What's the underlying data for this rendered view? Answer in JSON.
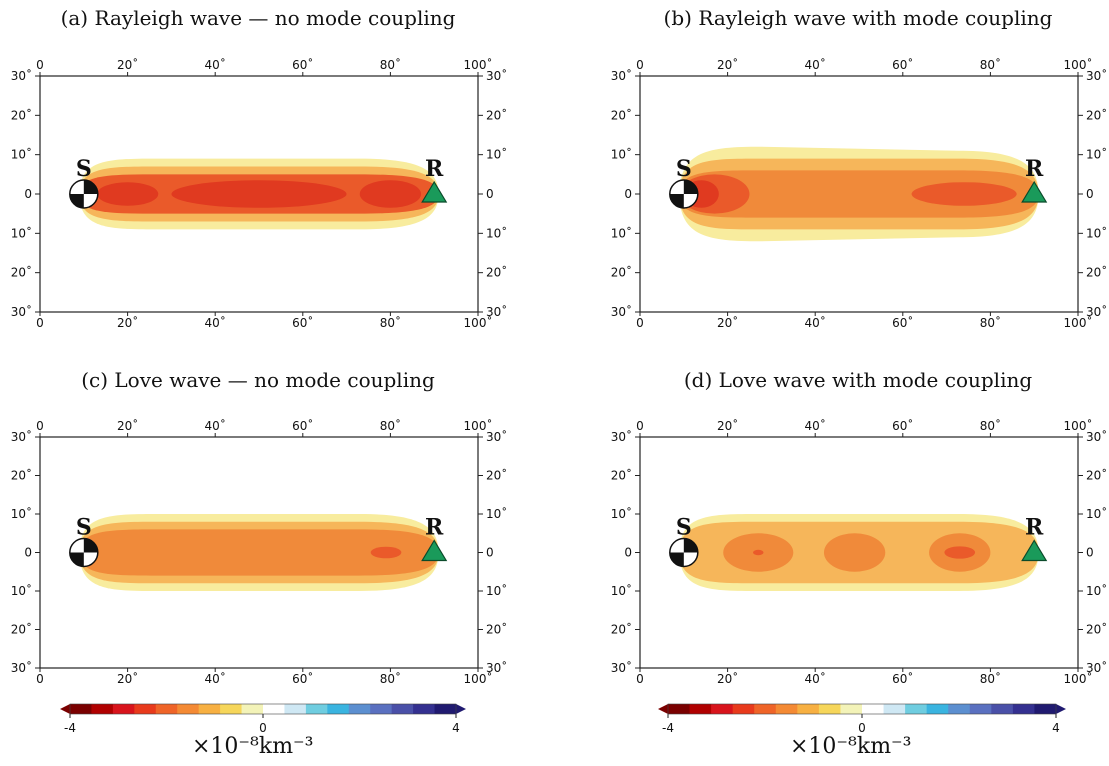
{
  "panels": [
    {
      "title": "(a) Rayleigh wave — no mode coupling"
    },
    {
      "title": "(b) Rayleigh wave with mode coupling"
    },
    {
      "title": "(c) Love wave — no mode coupling"
    },
    {
      "title": "(d) Love wave with mode coupling"
    }
  ],
  "axes": {
    "x_ticks": [
      "0",
      "20˚",
      "40˚",
      "60˚",
      "80˚",
      "100˚"
    ],
    "y_ticks": [
      "30˚",
      "20˚",
      "10˚",
      "0",
      "10˚",
      "20˚",
      "30˚"
    ]
  },
  "markers": {
    "source": "S",
    "receiver": "R"
  },
  "colorbar": {
    "tick_labels": [
      "-4",
      "0",
      "4"
    ],
    "unit": "×10⁻⁸km⁻³",
    "colors": [
      "#7a0000",
      "#b00000",
      "#d8141c",
      "#e83a1c",
      "#ef6428",
      "#f48a34",
      "#f7b042",
      "#f6d65a",
      "#f3f3b8",
      "#ffffff",
      "#cfe8f4",
      "#6fcde0",
      "#3ab4e0",
      "#5c8fd0",
      "#5a70c0",
      "#4a50a8",
      "#343090",
      "#201a70"
    ]
  },
  "colors": {
    "yellow": "#f8ec9e",
    "light_orange": "#f6b65a",
    "orange": "#f08a3a",
    "red_orange": "#ea5a2a",
    "red": "#e03a20",
    "receiver": "#1a9a5a"
  }
}
